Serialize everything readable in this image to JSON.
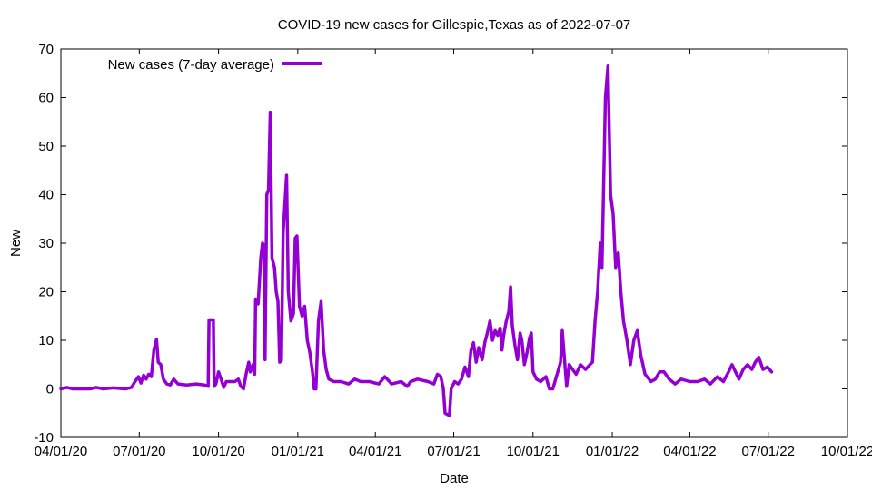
{
  "chart_data": {
    "type": "line",
    "title": "COVID-19 new cases for Gillespie,Texas as of 2022-07-07",
    "xlabel": "Date",
    "ylabel": "New",
    "xlim": [
      "2020-04-01",
      "2022-10-01"
    ],
    "ylim": [
      -10,
      70
    ],
    "y_ticks": [
      -10,
      0,
      10,
      20,
      30,
      40,
      50,
      60,
      70
    ],
    "x_ticks": [
      "2020-04-01",
      "2020-07-01",
      "2020-10-01",
      "2021-01-01",
      "2021-04-01",
      "2021-07-01",
      "2021-10-01",
      "2022-01-01",
      "2022-04-01",
      "2022-07-01",
      "2022-10-01"
    ],
    "x_tick_labels": [
      "04/01/20",
      "07/01/20",
      "10/01/20",
      "01/01/21",
      "04/01/21",
      "07/01/21",
      "10/01/21",
      "01/01/22",
      "04/01/22",
      "07/01/22",
      "10/01/22"
    ],
    "grid": false,
    "legend_position": "top-left",
    "series": [
      {
        "name": "New cases (7-day average)",
        "color": "#9400d3",
        "points": [
          [
            "2020-04-01",
            0.0
          ],
          [
            "2020-04-08",
            0.3
          ],
          [
            "2020-04-15",
            0.0
          ],
          [
            "2020-04-25",
            0.0
          ],
          [
            "2020-05-05",
            0.0
          ],
          [
            "2020-05-12",
            0.3
          ],
          [
            "2020-05-20",
            0.0
          ],
          [
            "2020-06-01",
            0.2
          ],
          [
            "2020-06-15",
            0.0
          ],
          [
            "2020-06-22",
            0.3
          ],
          [
            "2020-06-26",
            1.5
          ],
          [
            "2020-06-30",
            2.5
          ],
          [
            "2020-07-03",
            1.2
          ],
          [
            "2020-07-06",
            2.8
          ],
          [
            "2020-07-09",
            2.0
          ],
          [
            "2020-07-12",
            3.0
          ],
          [
            "2020-07-15",
            2.5
          ],
          [
            "2020-07-18",
            8.0
          ],
          [
            "2020-07-21",
            10.2
          ],
          [
            "2020-07-23",
            5.5
          ],
          [
            "2020-07-26",
            5.0
          ],
          [
            "2020-07-29",
            2.0
          ],
          [
            "2020-08-02",
            1.0
          ],
          [
            "2020-08-06",
            0.8
          ],
          [
            "2020-08-10",
            2.0
          ],
          [
            "2020-08-15",
            1.0
          ],
          [
            "2020-08-25",
            0.8
          ],
          [
            "2020-09-05",
            1.0
          ],
          [
            "2020-09-15",
            0.8
          ],
          [
            "2020-09-19",
            0.5
          ],
          [
            "2020-09-20",
            14.2
          ],
          [
            "2020-09-25",
            14.2
          ],
          [
            "2020-09-26",
            0.5
          ],
          [
            "2020-09-28",
            1.0
          ],
          [
            "2020-10-01",
            3.5
          ],
          [
            "2020-10-04",
            2.0
          ],
          [
            "2020-10-07",
            0.3
          ],
          [
            "2020-10-10",
            1.5
          ],
          [
            "2020-10-15",
            1.5
          ],
          [
            "2020-10-20",
            1.5
          ],
          [
            "2020-10-24",
            2.0
          ],
          [
            "2020-10-27",
            0.5
          ],
          [
            "2020-10-30",
            0.0
          ],
          [
            "2020-11-02",
            3.0
          ],
          [
            "2020-11-05",
            5.5
          ],
          [
            "2020-11-07",
            3.5
          ],
          [
            "2020-11-10",
            5.0
          ],
          [
            "2020-11-12",
            3.0
          ],
          [
            "2020-11-13",
            18.5
          ],
          [
            "2020-11-16",
            17.5
          ],
          [
            "2020-11-19",
            27.0
          ],
          [
            "2020-11-21",
            30.0
          ],
          [
            "2020-11-23",
            29.5
          ],
          [
            "2020-11-24",
            6.0
          ],
          [
            "2020-11-26",
            40.0
          ],
          [
            "2020-11-28",
            41.0
          ],
          [
            "2020-11-30",
            57.0
          ],
          [
            "2020-12-02",
            27.0
          ],
          [
            "2020-12-05",
            25.0
          ],
          [
            "2020-12-07",
            20.0
          ],
          [
            "2020-12-09",
            18.0
          ],
          [
            "2020-12-11",
            5.5
          ],
          [
            "2020-12-13",
            5.8
          ],
          [
            "2020-12-15",
            32.0
          ],
          [
            "2020-12-17",
            38.0
          ],
          [
            "2020-12-19",
            44.0
          ],
          [
            "2020-12-21",
            20.0
          ],
          [
            "2020-12-24",
            14.0
          ],
          [
            "2020-12-27",
            15.5
          ],
          [
            "2020-12-29",
            31.0
          ],
          [
            "2020-12-31",
            31.5
          ],
          [
            "2021-01-03",
            17.0
          ],
          [
            "2021-01-06",
            15.0
          ],
          [
            "2021-01-09",
            17.0
          ],
          [
            "2021-01-12",
            10.0
          ],
          [
            "2021-01-15",
            7.5
          ],
          [
            "2021-01-18",
            3.5
          ],
          [
            "2021-01-20",
            0.0
          ],
          [
            "2021-01-22",
            0.0
          ],
          [
            "2021-01-25",
            14.0
          ],
          [
            "2021-01-28",
            18.0
          ],
          [
            "2021-01-31",
            8.0
          ],
          [
            "2021-02-03",
            4.0
          ],
          [
            "2021-02-06",
            2.0
          ],
          [
            "2021-02-12",
            1.5
          ],
          [
            "2021-02-20",
            1.5
          ],
          [
            "2021-03-01",
            1.0
          ],
          [
            "2021-03-08",
            2.0
          ],
          [
            "2021-03-15",
            1.5
          ],
          [
            "2021-03-25",
            1.5
          ],
          [
            "2021-04-05",
            1.0
          ],
          [
            "2021-04-12",
            2.5
          ],
          [
            "2021-04-20",
            1.0
          ],
          [
            "2021-05-01",
            1.5
          ],
          [
            "2021-05-08",
            0.5
          ],
          [
            "2021-05-12",
            1.5
          ],
          [
            "2021-05-20",
            2.0
          ],
          [
            "2021-06-01",
            1.5
          ],
          [
            "2021-06-08",
            1.0
          ],
          [
            "2021-06-12",
            3.0
          ],
          [
            "2021-06-16",
            2.5
          ],
          [
            "2021-06-19",
            0.0
          ],
          [
            "2021-06-21",
            -5.0
          ],
          [
            "2021-06-26",
            -5.5
          ],
          [
            "2021-06-28",
            0.0
          ],
          [
            "2021-07-02",
            1.5
          ],
          [
            "2021-07-06",
            1.0
          ],
          [
            "2021-07-10",
            2.0
          ],
          [
            "2021-07-14",
            4.5
          ],
          [
            "2021-07-18",
            2.5
          ],
          [
            "2021-07-21",
            8.0
          ],
          [
            "2021-07-24",
            9.5
          ],
          [
            "2021-07-27",
            5.5
          ],
          [
            "2021-07-30",
            8.5
          ],
          [
            "2021-08-03",
            6.0
          ],
          [
            "2021-08-06",
            9.5
          ],
          [
            "2021-08-09",
            11.5
          ],
          [
            "2021-08-12",
            14.0
          ],
          [
            "2021-08-15",
            10.0
          ],
          [
            "2021-08-18",
            12.0
          ],
          [
            "2021-08-21",
            11.0
          ],
          [
            "2021-08-24",
            12.5
          ],
          [
            "2021-08-26",
            8.0
          ],
          [
            "2021-08-28",
            11.0
          ],
          [
            "2021-08-31",
            14.0
          ],
          [
            "2021-09-03",
            16.0
          ],
          [
            "2021-09-05",
            21.0
          ],
          [
            "2021-09-07",
            13.0
          ],
          [
            "2021-09-10",
            9.0
          ],
          [
            "2021-09-13",
            6.0
          ],
          [
            "2021-09-16",
            11.5
          ],
          [
            "2021-09-18",
            10.0
          ],
          [
            "2021-09-21",
            5.0
          ],
          [
            "2021-09-24",
            7.5
          ],
          [
            "2021-09-27",
            10.5
          ],
          [
            "2021-09-29",
            11.5
          ],
          [
            "2021-10-01",
            3.5
          ],
          [
            "2021-10-05",
            2.0
          ],
          [
            "2021-10-10",
            1.5
          ],
          [
            "2021-10-16",
            2.5
          ],
          [
            "2021-10-20",
            0.0
          ],
          [
            "2021-10-24",
            0.0
          ],
          [
            "2021-10-29",
            3.0
          ],
          [
            "2021-11-02",
            5.5
          ],
          [
            "2021-11-04",
            12.0
          ],
          [
            "2021-11-07",
            5.0
          ],
          [
            "2021-11-09",
            0.5
          ],
          [
            "2021-11-12",
            5.0
          ],
          [
            "2021-11-16",
            4.0
          ],
          [
            "2021-11-20",
            3.0
          ],
          [
            "2021-11-25",
            5.0
          ],
          [
            "2021-12-01",
            4.0
          ],
          [
            "2021-12-06",
            5.0
          ],
          [
            "2021-12-09",
            5.5
          ],
          [
            "2021-12-12",
            14.0
          ],
          [
            "2021-12-15",
            20.0
          ],
          [
            "2021-12-18",
            30.0
          ],
          [
            "2021-12-20",
            25.0
          ],
          [
            "2021-12-24",
            60.0
          ],
          [
            "2021-12-27",
            66.5
          ],
          [
            "2021-12-30",
            40.0
          ],
          [
            "2022-01-02",
            36.0
          ],
          [
            "2022-01-05",
            25.0
          ],
          [
            "2022-01-08",
            28.0
          ],
          [
            "2022-01-11",
            20.0
          ],
          [
            "2022-01-14",
            14.0
          ],
          [
            "2022-01-18",
            10.0
          ],
          [
            "2022-01-22",
            5.0
          ],
          [
            "2022-01-26",
            10.0
          ],
          [
            "2022-01-30",
            12.0
          ],
          [
            "2022-02-03",
            7.0
          ],
          [
            "2022-02-08",
            3.0
          ],
          [
            "2022-02-15",
            1.5
          ],
          [
            "2022-02-20",
            2.0
          ],
          [
            "2022-02-25",
            3.5
          ],
          [
            "2022-03-02",
            3.5
          ],
          [
            "2022-03-08",
            2.0
          ],
          [
            "2022-03-15",
            1.0
          ],
          [
            "2022-03-22",
            2.0
          ],
          [
            "2022-04-01",
            1.5
          ],
          [
            "2022-04-10",
            1.5
          ],
          [
            "2022-04-18",
            2.0
          ],
          [
            "2022-04-25",
            1.0
          ],
          [
            "2022-05-03",
            2.5
          ],
          [
            "2022-05-10",
            1.5
          ],
          [
            "2022-05-16",
            3.5
          ],
          [
            "2022-05-20",
            5.0
          ],
          [
            "2022-05-24",
            3.5
          ],
          [
            "2022-05-28",
            2.0
          ],
          [
            "2022-06-02",
            4.0
          ],
          [
            "2022-06-07",
            5.0
          ],
          [
            "2022-06-12",
            4.0
          ],
          [
            "2022-06-16",
            5.5
          ],
          [
            "2022-06-20",
            6.5
          ],
          [
            "2022-06-25",
            4.0
          ],
          [
            "2022-06-30",
            4.5
          ],
          [
            "2022-07-05",
            3.5
          ]
        ]
      }
    ]
  }
}
